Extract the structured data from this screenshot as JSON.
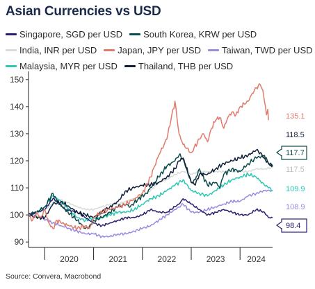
{
  "title": "Asian Currencies vs USD",
  "source": "Source: Convera, Macrobond",
  "chart_data": {
    "type": "line",
    "title": "Asian Currencies vs USD",
    "xlabel": "",
    "ylabel": "",
    "ylim": [
      88,
      152
    ],
    "x_range": [
      "2019-09",
      "2024-09"
    ],
    "x_tick_labels": [
      "2020",
      "2021",
      "2022",
      "2023",
      "2024"
    ],
    "y_ticks": [
      90,
      100,
      110,
      120,
      130,
      140,
      150
    ],
    "grid": false,
    "legend_position": "top",
    "series": [
      {
        "name": "Singapore, SGD per USD",
        "color": "#2b1e6e",
        "end_value": 98.4,
        "end_label": "98.4",
        "boxed": true,
        "points": [
          [
            0,
            100
          ],
          [
            2,
            101
          ],
          [
            4,
            102
          ],
          [
            6,
            106
          ],
          [
            7,
            105
          ],
          [
            9,
            102
          ],
          [
            12,
            101
          ],
          [
            14,
            99
          ],
          [
            16,
            97
          ],
          [
            18,
            96
          ],
          [
            20,
            97
          ],
          [
            22,
            98
          ],
          [
            24,
            99
          ],
          [
            26,
            99
          ],
          [
            28,
            100
          ],
          [
            30,
            102
          ],
          [
            32,
            101
          ],
          [
            34,
            101
          ],
          [
            36,
            103
          ],
          [
            37,
            104
          ],
          [
            38,
            106
          ],
          [
            39,
            105
          ],
          [
            40,
            104
          ],
          [
            42,
            102
          ],
          [
            44,
            100
          ],
          [
            46,
            101
          ],
          [
            48,
            102
          ],
          [
            50,
            101
          ],
          [
            52,
            100
          ],
          [
            54,
            100
          ],
          [
            56,
            102
          ],
          [
            58,
            101
          ],
          [
            59,
            99
          ],
          [
            60,
            99
          ]
        ]
      },
      {
        "name": "South Korea, KRW per USD",
        "color": "#0d4a4a",
        "end_value": 117.7,
        "end_label": "117.7",
        "boxed": true,
        "points": [
          [
            0,
            100
          ],
          [
            2,
            101
          ],
          [
            4,
            103
          ],
          [
            6,
            108
          ],
          [
            7,
            105
          ],
          [
            9,
            102
          ],
          [
            12,
            98
          ],
          [
            14,
            95
          ],
          [
            15,
            96
          ],
          [
            16,
            98
          ],
          [
            18,
            99
          ],
          [
            20,
            101
          ],
          [
            22,
            103
          ],
          [
            24,
            104
          ],
          [
            25,
            103
          ],
          [
            27,
            106
          ],
          [
            29,
            108
          ],
          [
            31,
            112
          ],
          [
            32,
            114
          ],
          [
            34,
            118
          ],
          [
            36,
            120
          ],
          [
            37,
            122
          ],
          [
            38,
            121
          ],
          [
            40,
            112
          ],
          [
            41,
            113
          ],
          [
            42,
            117
          ],
          [
            44,
            111
          ],
          [
            46,
            112
          ],
          [
            47,
            110
          ],
          [
            48,
            115
          ],
          [
            50,
            117
          ],
          [
            52,
            116
          ],
          [
            54,
            119
          ],
          [
            56,
            121
          ],
          [
            58,
            122
          ],
          [
            59,
            119
          ],
          [
            60,
            118
          ]
        ]
      },
      {
        "name": "India, INR per USD",
        "color": "#d6ddd9",
        "end_value": 117.5,
        "end_label": "117.5",
        "boxed": false,
        "points": [
          [
            0,
            100
          ],
          [
            3,
            101
          ],
          [
            5,
            103
          ],
          [
            7,
            106
          ],
          [
            9,
            105
          ],
          [
            12,
            103
          ],
          [
            14,
            102
          ],
          [
            16,
            102
          ],
          [
            18,
            103
          ],
          [
            20,
            104
          ],
          [
            22,
            104
          ],
          [
            24,
            105
          ],
          [
            26,
            106
          ],
          [
            28,
            107
          ],
          [
            30,
            109
          ],
          [
            32,
            112
          ],
          [
            34,
            113
          ],
          [
            36,
            115
          ],
          [
            38,
            116
          ],
          [
            40,
            115
          ],
          [
            42,
            116
          ],
          [
            44,
            116
          ],
          [
            46,
            116
          ],
          [
            48,
            116
          ],
          [
            50,
            116
          ],
          [
            52,
            116
          ],
          [
            54,
            116
          ],
          [
            56,
            117
          ],
          [
            58,
            117
          ],
          [
            60,
            117.5
          ]
        ]
      },
      {
        "name": "Japan, JPY per USD",
        "color": "#e07a6a",
        "end_value": 135.1,
        "end_label": "135.1",
        "boxed": false,
        "points": [
          [
            0,
            100
          ],
          [
            1,
            98
          ],
          [
            2,
            101
          ],
          [
            3,
            99
          ],
          [
            4,
            102
          ],
          [
            5,
            97
          ],
          [
            6,
            95
          ],
          [
            7,
            98
          ],
          [
            8,
            97
          ],
          [
            10,
            96
          ],
          [
            12,
            95
          ],
          [
            14,
            96
          ],
          [
            15,
            95
          ],
          [
            16,
            99
          ],
          [
            18,
            101
          ],
          [
            20,
            102
          ],
          [
            22,
            103
          ],
          [
            24,
            104
          ],
          [
            26,
            106
          ],
          [
            28,
            108
          ],
          [
            30,
            114
          ],
          [
            31,
            118
          ],
          [
            32,
            122
          ],
          [
            34,
            128
          ],
          [
            35,
            135
          ],
          [
            36,
            142
          ],
          [
            37,
            130
          ],
          [
            38,
            126
          ],
          [
            40,
            123
          ],
          [
            42,
            128
          ],
          [
            43,
            130
          ],
          [
            44,
            127
          ],
          [
            45,
            132
          ],
          [
            46,
            135
          ],
          [
            47,
            136
          ],
          [
            48,
            132
          ],
          [
            49,
            136
          ],
          [
            50,
            138
          ],
          [
            51,
            137
          ],
          [
            52,
            140
          ],
          [
            53,
            141
          ],
          [
            54,
            142
          ],
          [
            55,
            145
          ],
          [
            56,
            147
          ],
          [
            57,
            148
          ],
          [
            57.6,
            146
          ],
          [
            58,
            142
          ],
          [
            58.5,
            137
          ],
          [
            58.8,
            139
          ],
          [
            59,
            135
          ]
        ]
      },
      {
        "name": "Taiwan, TWD per USD",
        "color": "#9a8ae0",
        "end_value": 108.9,
        "end_label": "108.9",
        "boxed": false,
        "points": [
          [
            0,
            100
          ],
          [
            3,
            99
          ],
          [
            6,
            97
          ],
          [
            8,
            96
          ],
          [
            10,
            95
          ],
          [
            12,
            94
          ],
          [
            14,
            93
          ],
          [
            16,
            93
          ],
          [
            18,
            92
          ],
          [
            20,
            92
          ],
          [
            22,
            93
          ],
          [
            24,
            93
          ],
          [
            26,
            94
          ],
          [
            28,
            95
          ],
          [
            30,
            96
          ],
          [
            32,
            98
          ],
          [
            34,
            100
          ],
          [
            36,
            102
          ],
          [
            37,
            103
          ],
          [
            38,
            104
          ],
          [
            40,
            101
          ],
          [
            42,
            101
          ],
          [
            44,
            102
          ],
          [
            46,
            103
          ],
          [
            48,
            104
          ],
          [
            50,
            105
          ],
          [
            52,
            105
          ],
          [
            54,
            107
          ],
          [
            56,
            108
          ],
          [
            58,
            109
          ],
          [
            60,
            109
          ]
        ]
      },
      {
        "name": "Malaysia, MYR per USD",
        "color": "#2ec7b4",
        "end_value": 109.9,
        "end_label": "109.9",
        "boxed": false,
        "points": [
          [
            0,
            100
          ],
          [
            2,
            101
          ],
          [
            4,
            103
          ],
          [
            6,
            107
          ],
          [
            8,
            105
          ],
          [
            10,
            102
          ],
          [
            12,
            99
          ],
          [
            14,
            98
          ],
          [
            16,
            99
          ],
          [
            18,
            99
          ],
          [
            20,
            100
          ],
          [
            22,
            101
          ],
          [
            24,
            101
          ],
          [
            26,
            102
          ],
          [
            28,
            104
          ],
          [
            30,
            106
          ],
          [
            32,
            107
          ],
          [
            34,
            109
          ],
          [
            36,
            111
          ],
          [
            38,
            113
          ],
          [
            40,
            109
          ],
          [
            42,
            108
          ],
          [
            44,
            107
          ],
          [
            46,
            109
          ],
          [
            48,
            111
          ],
          [
            50,
            113
          ],
          [
            52,
            114
          ],
          [
            54,
            115
          ],
          [
            56,
            114
          ],
          [
            58,
            111
          ],
          [
            59,
            110
          ],
          [
            60,
            109
          ]
        ]
      },
      {
        "name": "Thailand, THB per USD",
        "color": "#0f2038",
        "end_value": 118.5,
        "end_label": "118.5",
        "boxed": false,
        "points": [
          [
            0,
            100
          ],
          [
            2,
            99
          ],
          [
            4,
            99
          ],
          [
            6,
            104
          ],
          [
            8,
            105
          ],
          [
            10,
            103
          ],
          [
            12,
            101
          ],
          [
            14,
            100
          ],
          [
            16,
            99
          ],
          [
            18,
            101
          ],
          [
            20,
            103
          ],
          [
            22,
            105
          ],
          [
            24,
            109
          ],
          [
            26,
            110
          ],
          [
            28,
            111
          ],
          [
            30,
            111
          ],
          [
            32,
            112
          ],
          [
            34,
            114
          ],
          [
            36,
            117
          ],
          [
            37,
            120
          ],
          [
            38,
            121
          ],
          [
            40,
            112
          ],
          [
            41,
            111
          ],
          [
            42,
            115
          ],
          [
            44,
            115
          ],
          [
            46,
            117
          ],
          [
            48,
            119
          ],
          [
            50,
            120
          ],
          [
            52,
            121
          ],
          [
            54,
            122
          ],
          [
            56,
            124
          ],
          [
            57,
            123
          ],
          [
            58,
            121
          ],
          [
            59,
            119
          ],
          [
            60,
            118
          ]
        ]
      }
    ]
  }
}
